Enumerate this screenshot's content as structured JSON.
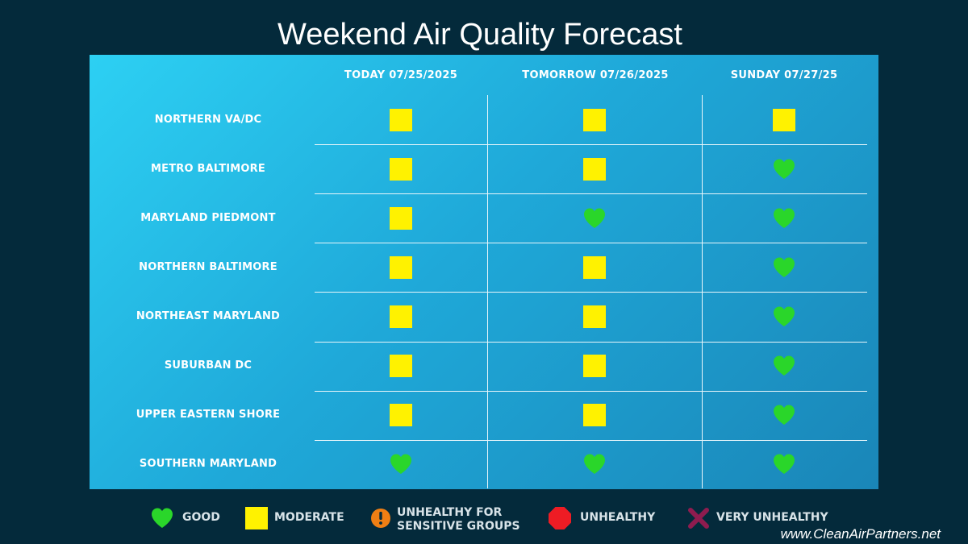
{
  "title": "Weekend Air Quality Forecast",
  "columns": [
    "TODAY 07/25/2025",
    "TOMORROW 07/26/2025",
    "SUNDAY 07/27/25"
  ],
  "rows": [
    {
      "region": "NORTHERN VA/DC",
      "forecast": [
        "moderate",
        "moderate",
        "moderate"
      ]
    },
    {
      "region": "METRO BALTIMORE",
      "forecast": [
        "moderate",
        "moderate",
        "good"
      ]
    },
    {
      "region": "MARYLAND PIEDMONT",
      "forecast": [
        "moderate",
        "good",
        "good"
      ]
    },
    {
      "region": "NORTHERN BALTIMORE",
      "forecast": [
        "moderate",
        "moderate",
        "good"
      ]
    },
    {
      "region": "NORTHEAST MARYLAND",
      "forecast": [
        "moderate",
        "moderate",
        "good"
      ]
    },
    {
      "region": "SUBURBAN DC",
      "forecast": [
        "moderate",
        "moderate",
        "good"
      ]
    },
    {
      "region": "UPPER EASTERN SHORE",
      "forecast": [
        "moderate",
        "moderate",
        "good"
      ]
    },
    {
      "region": "SOUTHERN MARYLAND",
      "forecast": [
        "good",
        "good",
        "good"
      ]
    }
  ],
  "legend": [
    {
      "key": "good",
      "label": "GOOD",
      "icon": "heart-icon",
      "color": "#2ad62a"
    },
    {
      "key": "moderate",
      "label": "MODERATE",
      "icon": "square-icon",
      "color": "#fff200"
    },
    {
      "key": "usg",
      "label": "UNHEALTHY FOR\nSENSITIVE GROUPS",
      "icon": "exclamation-circle-icon",
      "color": "#f07f14"
    },
    {
      "key": "unhealthy",
      "label": "UNHEALTHY",
      "icon": "octagon-icon",
      "color": "#ee1c24"
    },
    {
      "key": "very_unhealthy",
      "label": "VERY UNHEALTHY",
      "icon": "x-icon",
      "color": "#8f1c4f"
    }
  ],
  "footer": "www.CleanAirPartners.net"
}
